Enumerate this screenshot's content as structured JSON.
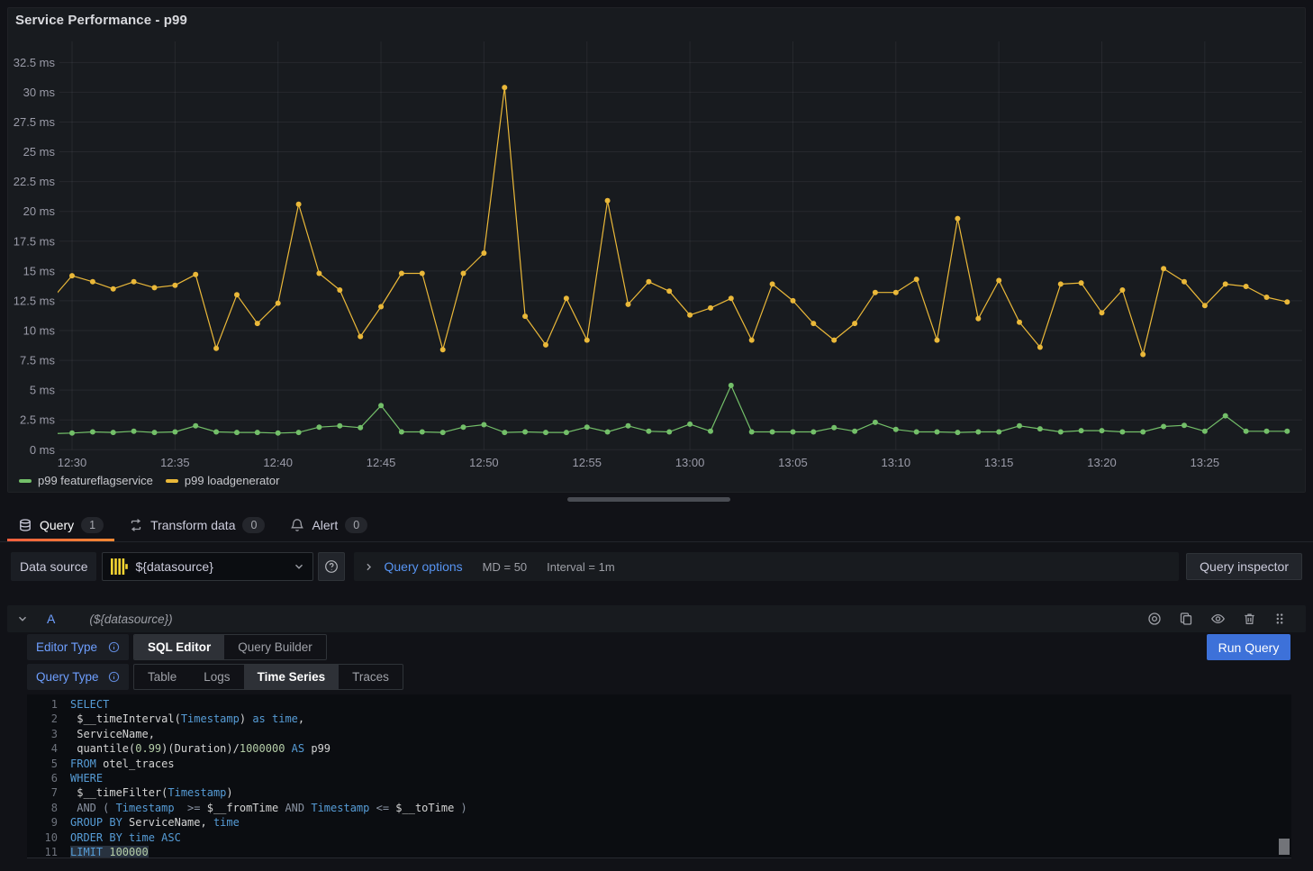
{
  "colors": {
    "accent_orange": "#FF780A",
    "primary_blue": "#3D71D9",
    "link_blue": "#5794F2",
    "editor_label_blue": "#6E9FFF",
    "series_green": "#73BF69",
    "series_yellow": "#EAB839",
    "panel_background": "#181b1f",
    "page_background": "#111217"
  },
  "panel": {
    "title": "Service Performance - p99"
  },
  "chart_data": {
    "type": "line",
    "title": "Service Performance - p99",
    "unit": "ms",
    "x_start": "12:30",
    "x_step_minutes": 1,
    "x_tick_labels": [
      "12:30",
      "12:35",
      "12:40",
      "12:45",
      "12:50",
      "12:55",
      "13:00",
      "13:05",
      "13:10",
      "13:15",
      "13:20",
      "13:25"
    ],
    "y_tick_values": [
      0,
      2.5,
      5,
      7.5,
      10,
      12.5,
      15,
      17.5,
      20,
      22.5,
      25,
      27.5,
      30,
      32.5
    ],
    "y_tick_labels": [
      "0 ms",
      "2.5 ms",
      "5 ms",
      "7.5 ms",
      "10 ms",
      "12.5 ms",
      "15 ms",
      "17.5 ms",
      "20 ms",
      "22.5 ms",
      "25 ms",
      "27.5 ms",
      "30 ms",
      "32.5 ms"
    ],
    "ylim": [
      0,
      34.3
    ],
    "grid": true,
    "legend_position": "bottom",
    "series": [
      {
        "name": "p99 featureflagservice",
        "color": "#73BF69",
        "lead_in": 1.35,
        "values": [
          1.4,
          1.5,
          1.45,
          1.55,
          1.45,
          1.5,
          2.0,
          1.5,
          1.45,
          1.45,
          1.4,
          1.45,
          1.9,
          2.0,
          1.85,
          3.7,
          1.5,
          1.5,
          1.45,
          1.9,
          2.1,
          1.45,
          1.5,
          1.45,
          1.45,
          1.9,
          1.5,
          2.0,
          1.55,
          1.5,
          2.15,
          1.55,
          5.4,
          1.5,
          1.5,
          1.5,
          1.5,
          1.85,
          1.55,
          2.3,
          1.7,
          1.5,
          1.5,
          1.45,
          1.5,
          1.5,
          2.0,
          1.75,
          1.5,
          1.6,
          1.6,
          1.5,
          1.5,
          1.95,
          2.05,
          1.55,
          2.85,
          1.55,
          1.55,
          1.55
        ]
      },
      {
        "name": "p99 loadgenerator",
        "color": "#EAB839",
        "lead_in": 12.6,
        "values": [
          14.6,
          14.1,
          13.5,
          14.1,
          13.6,
          13.8,
          14.7,
          8.5,
          13.0,
          10.6,
          12.3,
          20.6,
          14.8,
          13.4,
          9.5,
          12.0,
          14.8,
          14.8,
          8.4,
          14.8,
          16.5,
          30.4,
          11.2,
          8.8,
          12.7,
          9.2,
          20.9,
          12.2,
          14.1,
          13.3,
          11.3,
          11.9,
          12.7,
          9.2,
          13.9,
          12.5,
          10.6,
          9.2,
          10.6,
          13.2,
          13.2,
          14.3,
          9.2,
          19.4,
          11.0,
          14.2,
          10.7,
          8.6,
          13.9,
          14.0,
          11.5,
          13.4,
          8.0,
          15.2,
          14.1,
          12.1,
          13.9,
          13.7,
          12.8,
          12.4
        ]
      }
    ]
  },
  "tabs": [
    {
      "label": "Query",
      "count": "1",
      "icon": "database-icon",
      "active": true
    },
    {
      "label": "Transform data",
      "count": "0",
      "icon": "transform-icon",
      "active": false
    },
    {
      "label": "Alert",
      "count": "0",
      "icon": "bell-icon",
      "active": false
    }
  ],
  "toolbar": {
    "datasource_label": "Data source",
    "datasource_value": "${datasource}",
    "datasource_icon": "clickhouse-logo-icon",
    "help_icon": "help-circle-icon",
    "query_options_label": "Query options",
    "stats": [
      "MD = 50",
      "Interval = 1m"
    ],
    "inspector_label": "Query inspector"
  },
  "query": {
    "header": {
      "ref_id": "A",
      "hint": "(${datasource})",
      "action_icons": [
        "disable-query-icon",
        "duplicate-query-icon",
        "hide-response-icon",
        "remove-query-icon",
        "drag-handle-icon"
      ]
    },
    "editor_type": {
      "label": "Editor Type",
      "options": [
        "SQL Editor",
        "Query Builder"
      ],
      "active": "SQL Editor"
    },
    "query_type": {
      "label": "Query Type",
      "options": [
        "Table",
        "Logs",
        "Time Series",
        "Traces"
      ],
      "active": "Time Series"
    },
    "run_label": "Run Query",
    "sql": {
      "lines": [
        [
          [
            "k",
            "SELECT"
          ]
        ],
        [
          [
            "d",
            " $__timeInterval("
          ],
          [
            "k",
            "Timestamp"
          ],
          [
            "d",
            ") "
          ],
          [
            "k",
            "as"
          ],
          [
            "d",
            " "
          ],
          [
            "k",
            "time"
          ],
          [
            "d",
            ","
          ]
        ],
        [
          [
            "d",
            " ServiceName,"
          ]
        ],
        [
          [
            "d",
            " quantile("
          ],
          [
            "n",
            "0.99"
          ],
          [
            "d",
            ")(Duration)/"
          ],
          [
            "n",
            "1000000"
          ],
          [
            "d",
            " "
          ],
          [
            "k",
            "AS"
          ],
          [
            "d",
            " p99"
          ]
        ],
        [
          [
            "k",
            "FROM"
          ],
          [
            "d",
            " otel_traces"
          ]
        ],
        [
          [
            "k",
            "WHERE"
          ]
        ],
        [
          [
            "d",
            " $__timeFilter("
          ],
          [
            "k",
            "Timestamp"
          ],
          [
            "d",
            ")"
          ]
        ],
        [
          [
            "o",
            " AND ( "
          ],
          [
            "k",
            "Timestamp"
          ],
          [
            "o",
            "  >= "
          ],
          [
            "d",
            "$__fromTime"
          ],
          [
            "o",
            " AND "
          ],
          [
            "k",
            "Timestamp"
          ],
          [
            "o",
            " <= "
          ],
          [
            "d",
            "$__toTime"
          ],
          [
            "o",
            " )"
          ]
        ],
        [
          [
            "k",
            "GROUP BY"
          ],
          [
            "d",
            " ServiceName, "
          ],
          [
            "k",
            "time"
          ]
        ],
        [
          [
            "k",
            "ORDER BY"
          ],
          [
            "d",
            " "
          ],
          [
            "k",
            "time"
          ],
          [
            "d",
            " "
          ],
          [
            "k",
            "ASC"
          ]
        ],
        [
          [
            "k",
            "LIMIT",
            1
          ],
          [
            "d",
            " ",
            1
          ],
          [
            "n",
            "100000",
            1
          ]
        ]
      ]
    }
  }
}
